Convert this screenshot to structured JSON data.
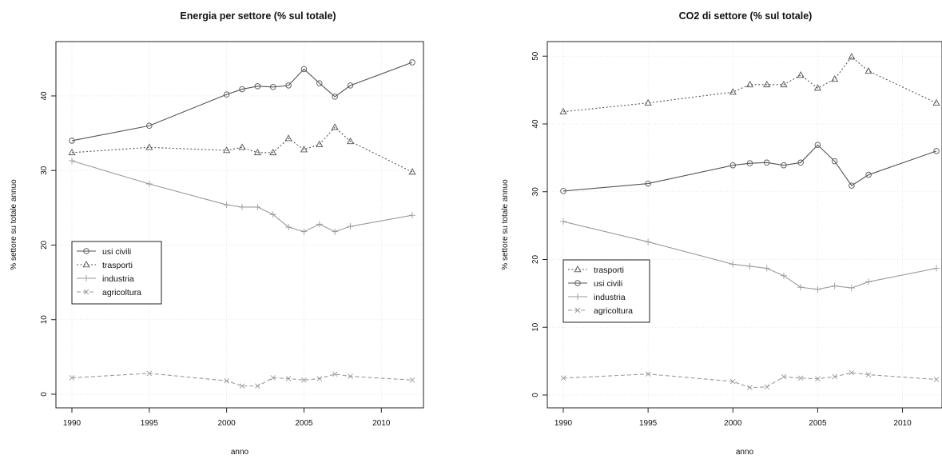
{
  "chart_data": [
    {
      "type": "line",
      "title": "Energia per settore (% sul totale)",
      "xlabel": "anno",
      "ylabel": "% settore su totale annuo",
      "xlim": [
        1990,
        2012
      ],
      "ylim": [
        0,
        46
      ],
      "x_ticks": [
        1990,
        1995,
        2000,
        2005,
        2010
      ],
      "y_ticks": [
        0,
        10,
        20,
        30,
        40
      ],
      "grid": true,
      "legend_position": "center-left",
      "x": [
        1990,
        1995,
        2000,
        2001,
        2002,
        2003,
        2004,
        2005,
        2006,
        2007,
        2008,
        2012
      ],
      "series": [
        {
          "name": "usi civili",
          "marker": "circle",
          "line": "solid",
          "color": "#555555",
          "values": [
            34.0,
            36.0,
            40.2,
            40.9,
            41.3,
            41.2,
            41.4,
            43.6,
            41.7,
            39.9,
            41.4,
            44.5
          ]
        },
        {
          "name": "trasporti",
          "marker": "triangle",
          "line": "dotted",
          "color": "#555555",
          "values": [
            32.4,
            33.1,
            32.7,
            33.1,
            32.4,
            32.4,
            34.3,
            32.8,
            33.5,
            35.8,
            33.9,
            29.8
          ]
        },
        {
          "name": "industria",
          "marker": "plus",
          "line": "solid",
          "color": "#9a9a9a",
          "values": [
            31.3,
            28.2,
            25.4,
            25.1,
            25.1,
            24.1,
            22.4,
            21.8,
            22.8,
            21.8,
            22.5,
            24.0
          ]
        },
        {
          "name": "agricoltura",
          "marker": "cross",
          "line": "dashed",
          "color": "#9a9a9a",
          "values": [
            2.2,
            2.8,
            1.8,
            1.1,
            1.1,
            2.2,
            2.1,
            1.9,
            2.1,
            2.7,
            2.4,
            1.9
          ]
        }
      ]
    },
    {
      "type": "line",
      "title": "CO2 di settore (% sul totale)",
      "xlabel": "anno",
      "ylabel": "% settore su totale annuo",
      "xlim": [
        1990,
        2012
      ],
      "ylim": [
        0,
        50.5
      ],
      "x_ticks": [
        1990,
        1995,
        2000,
        2005,
        2010
      ],
      "y_ticks": [
        0,
        10,
        20,
        30,
        40,
        50
      ],
      "grid": true,
      "legend_position": "center-left",
      "x": [
        1990,
        1995,
        2000,
        2001,
        2002,
        2003,
        2004,
        2005,
        2006,
        2007,
        2008,
        2012
      ],
      "series": [
        {
          "name": "trasporti",
          "marker": "triangle",
          "line": "dotted",
          "color": "#555555",
          "values": [
            41.8,
            43.1,
            44.7,
            45.8,
            45.8,
            45.8,
            47.2,
            45.3,
            46.6,
            49.9,
            47.8,
            43.1
          ]
        },
        {
          "name": "usi civili",
          "marker": "circle",
          "line": "solid",
          "color": "#555555",
          "values": [
            30.1,
            31.2,
            33.9,
            34.2,
            34.3,
            33.9,
            34.3,
            36.9,
            34.5,
            30.9,
            32.5,
            36.0
          ]
        },
        {
          "name": "industria",
          "marker": "plus",
          "line": "solid",
          "color": "#9a9a9a",
          "values": [
            25.6,
            22.6,
            19.3,
            19.0,
            18.7,
            17.6,
            15.9,
            15.6,
            16.1,
            15.8,
            16.7,
            18.7
          ]
        },
        {
          "name": "agricoltura",
          "marker": "cross",
          "line": "dashed",
          "color": "#9a9a9a",
          "values": [
            2.5,
            3.1,
            2.0,
            1.1,
            1.2,
            2.7,
            2.5,
            2.4,
            2.7,
            3.3,
            3.0,
            2.3
          ]
        }
      ]
    }
  ]
}
